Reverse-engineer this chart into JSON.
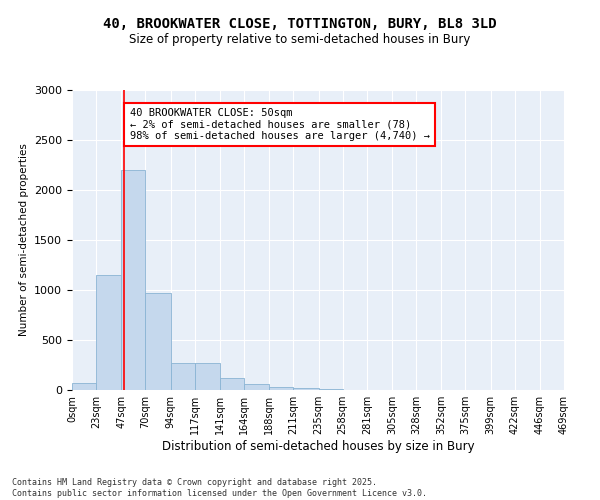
{
  "title_line1": "40, BROOKWATER CLOSE, TOTTINGTON, BURY, BL8 3LD",
  "title_line2": "Size of property relative to semi-detached houses in Bury",
  "xlabel": "Distribution of semi-detached houses by size in Bury",
  "ylabel": "Number of semi-detached properties",
  "bar_color": "#c5d8ed",
  "bar_edge_color": "#8ab4d4",
  "background_color": "#e8eff8",
  "grid_color": "white",
  "vline_color": "red",
  "vline_x": 50,
  "annotation_title": "40 BROOKWATER CLOSE: 50sqm",
  "annotation_line2": "← 2% of semi-detached houses are smaller (78)",
  "annotation_line3": "98% of semi-detached houses are larger (4,740) →",
  "annotation_box_color": "white",
  "annotation_border_color": "red",
  "footer_line1": "Contains HM Land Registry data © Crown copyright and database right 2025.",
  "footer_line2": "Contains public sector information licensed under the Open Government Licence v3.0.",
  "bin_edges": [
    0,
    23,
    47,
    70,
    94,
    117,
    141,
    164,
    188,
    211,
    235,
    258,
    281,
    305,
    328,
    352,
    375,
    399,
    422,
    446,
    469
  ],
  "bin_labels": [
    "0sqm",
    "23sqm",
    "47sqm",
    "70sqm",
    "94sqm",
    "117sqm",
    "141sqm",
    "164sqm",
    "188sqm",
    "211sqm",
    "235sqm",
    "258sqm",
    "281sqm",
    "305sqm",
    "328sqm",
    "352sqm",
    "375sqm",
    "399sqm",
    "422sqm",
    "446sqm",
    "469sqm"
  ],
  "bar_heights": [
    75,
    1150,
    2200,
    970,
    270,
    270,
    120,
    60,
    30,
    20,
    10,
    5,
    2,
    0,
    0,
    0,
    0,
    0,
    0,
    0
  ],
  "ylim": [
    0,
    3000
  ],
  "yticks": [
    0,
    500,
    1000,
    1500,
    2000,
    2500,
    3000
  ],
  "figsize": [
    6.0,
    5.0
  ],
  "dpi": 100
}
